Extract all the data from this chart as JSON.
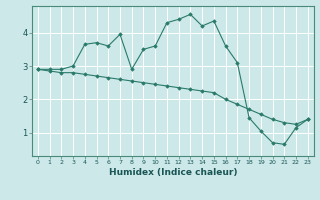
{
  "xlabel": "Humidex (Indice chaleur)",
  "background_color": "#cce8e8",
  "grid_color": "#ffffff",
  "line_color": "#2a7a6a",
  "x_values": [
    0,
    1,
    2,
    3,
    4,
    5,
    6,
    7,
    8,
    9,
    10,
    11,
    12,
    13,
    14,
    15,
    16,
    17,
    18,
    19,
    20,
    21,
    22,
    23
  ],
  "line1_y": [
    2.9,
    2.9,
    2.9,
    3.0,
    3.65,
    3.7,
    3.6,
    3.95,
    2.9,
    3.5,
    3.6,
    4.3,
    4.4,
    4.55,
    4.2,
    4.35,
    3.6,
    3.1,
    1.45,
    1.05,
    0.7,
    0.65,
    1.15,
    1.4
  ],
  "line2_y": [
    2.9,
    2.85,
    2.8,
    2.8,
    2.75,
    2.7,
    2.65,
    2.6,
    2.55,
    2.5,
    2.45,
    2.4,
    2.35,
    2.3,
    2.25,
    2.2,
    2.0,
    1.85,
    1.7,
    1.55,
    1.4,
    1.3,
    1.25,
    1.4
  ],
  "yticks": [
    1,
    2,
    3,
    4
  ],
  "xticks": [
    0,
    1,
    2,
    3,
    4,
    5,
    6,
    7,
    8,
    9,
    10,
    11,
    12,
    13,
    14,
    15,
    16,
    17,
    18,
    19,
    20,
    21,
    22,
    23
  ],
  "ylim": [
    0.3,
    4.8
  ],
  "xlim": [
    -0.5,
    23.5
  ]
}
